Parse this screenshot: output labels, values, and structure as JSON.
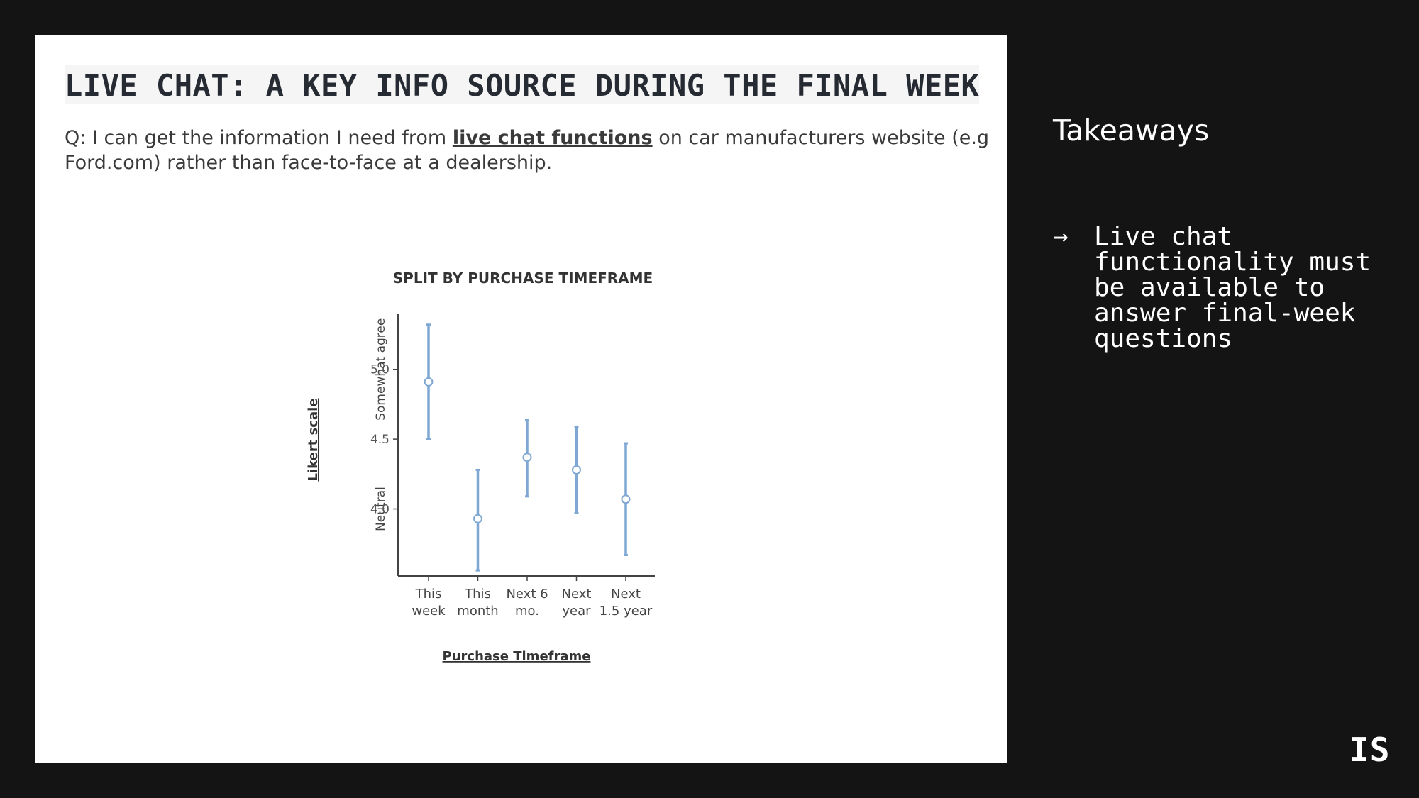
{
  "slide": {
    "title": "LIVE CHAT: A KEY INFO SOURCE DURING THE FINAL WEEK",
    "question": {
      "prefix": "Q",
      "before": ": I can get the information I need from ",
      "highlight": "live chat functions",
      "after": " on car manufacturers website (e.g Ford.com) rather than face-to-face at a dealership."
    }
  },
  "chart_data": {
    "type": "scatter",
    "title": "SPLIT BY PURCHASE TIMEFRAME",
    "xlabel": "Purchase Timeframe",
    "ylabel": "Likert scale",
    "y_reference_labels": [
      {
        "label": "Somewhat agree",
        "y": 5.0
      },
      {
        "label": "Neutral",
        "y": 4.0
      }
    ],
    "categories": [
      [
        "This",
        "week"
      ],
      [
        "This",
        "month"
      ],
      [
        "Next 6",
        "mo."
      ],
      [
        "Next",
        "year"
      ],
      [
        "Next",
        "1.5 year"
      ]
    ],
    "values": [
      4.91,
      3.93,
      4.37,
      4.28,
      4.07
    ],
    "error_low": [
      4.5,
      3.56,
      4.09,
      3.97,
      3.67
    ],
    "error_high": [
      5.32,
      4.28,
      4.64,
      4.59,
      4.47
    ],
    "yticks": [
      4.0,
      4.5,
      5.0
    ],
    "ylim": [
      3.52,
      5.4
    ],
    "grid": false,
    "colors": {
      "marker": "#7fa7d4",
      "axis": "#444444"
    }
  },
  "sidebar": {
    "heading": "Takeaways",
    "items": [
      {
        "arrow": "→",
        "text": "Live chat functionality must be available to answer final-week questions"
      }
    ]
  },
  "logo": {
    "text": "IS"
  }
}
